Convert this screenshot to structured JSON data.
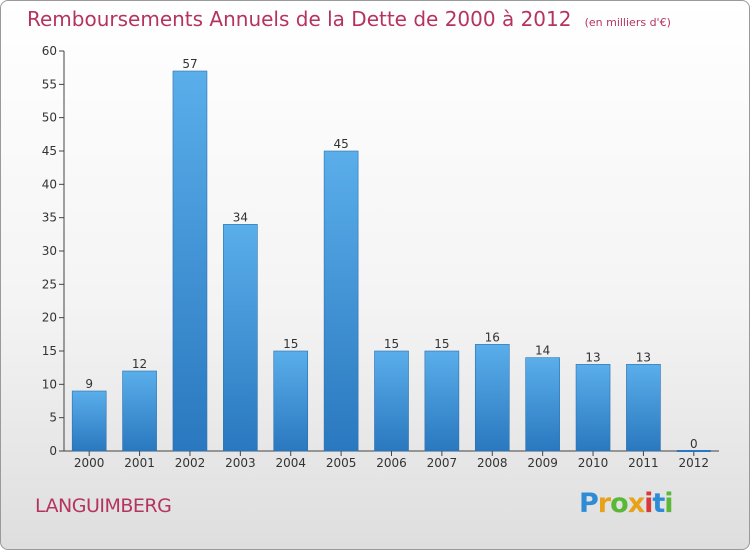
{
  "chart_data": {
    "type": "bar",
    "title": "Remboursements Annuels de la Dette de 2000 à 2012",
    "subtitle": "(en milliers d'€)",
    "categories": [
      "2000",
      "2001",
      "2002",
      "2003",
      "2004",
      "2005",
      "2006",
      "2007",
      "2008",
      "2009",
      "2010",
      "2011",
      "2012"
    ],
    "values": [
      9,
      12,
      57,
      34,
      15,
      45,
      15,
      15,
      16,
      14,
      13,
      13,
      0
    ],
    "ylim": [
      0,
      60
    ],
    "yticks": [
      0,
      5,
      10,
      15,
      20,
      25,
      30,
      35,
      40,
      45,
      50,
      55,
      60
    ],
    "grid": false,
    "legend": "none",
    "bar_color": "#3b8fd9"
  },
  "footer": {
    "place": "LANGUIMBERG",
    "logo_letters": [
      {
        "ch": "P",
        "color": "#2e8bd6"
      },
      {
        "ch": "r",
        "color": "#e8a21a"
      },
      {
        "ch": "o",
        "color": "#59b836"
      },
      {
        "ch": "x",
        "color": "#e8a21a"
      },
      {
        "ch": "i",
        "color": "#d83a3a"
      },
      {
        "ch": "t",
        "color": "#2e8bd6"
      },
      {
        "ch": "i",
        "color": "#59b836"
      }
    ]
  }
}
